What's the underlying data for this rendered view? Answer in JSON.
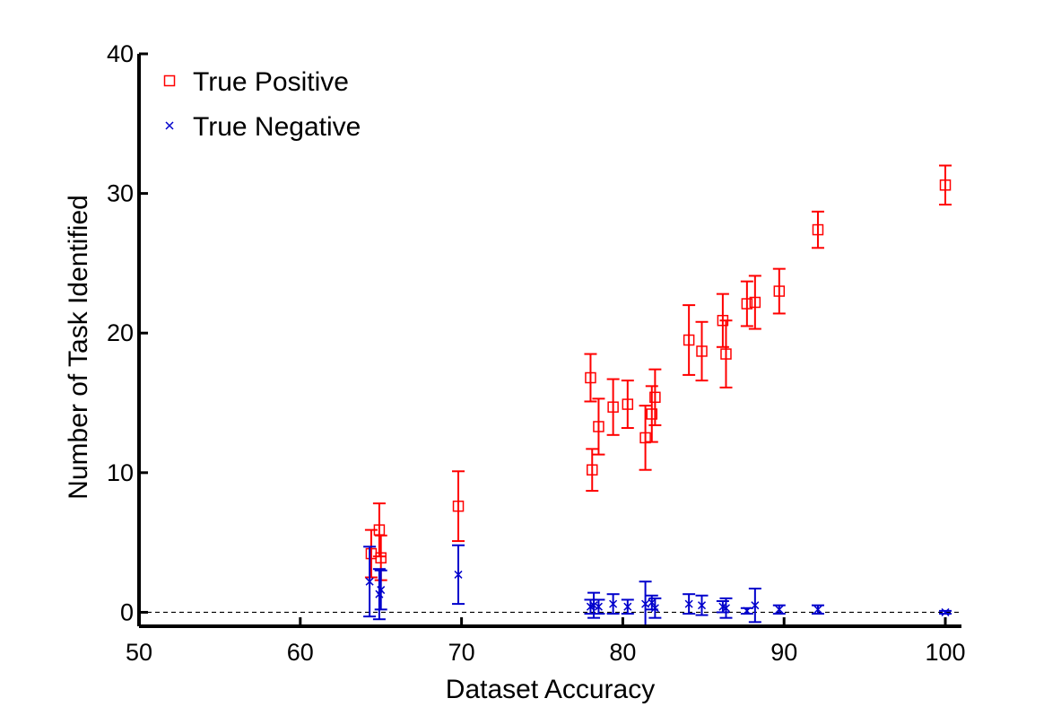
{
  "chart_data": {
    "type": "scatter",
    "xlabel": "Dataset Accuracy",
    "ylabel": "Number of Task Identified",
    "xlim": [
      50,
      101
    ],
    "ylim": [
      -1,
      40
    ],
    "xticks": [
      50,
      60,
      70,
      80,
      90,
      100
    ],
    "yticks": [
      0,
      10,
      20,
      30,
      40
    ],
    "reference_line": {
      "y": 0,
      "style": "dashed"
    },
    "legend_position": "top-left",
    "series": [
      {
        "name": "True Positive",
        "marker": "square",
        "color": "#ff0000",
        "points": [
          {
            "x": 64.4,
            "y": 4.2,
            "err": 1.7
          },
          {
            "x": 64.9,
            "y": 5.9,
            "err": 1.9
          },
          {
            "x": 65.0,
            "y": 3.9,
            "err": 1.6
          },
          {
            "x": 69.8,
            "y": 7.6,
            "err": 2.5
          },
          {
            "x": 78.0,
            "y": 16.8,
            "err": 1.7
          },
          {
            "x": 78.1,
            "y": 10.2,
            "err": 1.5
          },
          {
            "x": 78.5,
            "y": 13.3,
            "err": 2.0
          },
          {
            "x": 79.4,
            "y": 14.7,
            "err": 2.0
          },
          {
            "x": 80.3,
            "y": 14.9,
            "err": 1.7
          },
          {
            "x": 81.4,
            "y": 12.5,
            "err": 2.3
          },
          {
            "x": 81.8,
            "y": 14.2,
            "err": 2.0
          },
          {
            "x": 82.0,
            "y": 15.4,
            "err": 2.0
          },
          {
            "x": 84.1,
            "y": 19.5,
            "err": 2.5
          },
          {
            "x": 84.9,
            "y": 18.7,
            "err": 2.1
          },
          {
            "x": 86.2,
            "y": 20.9,
            "err": 1.9
          },
          {
            "x": 86.4,
            "y": 18.5,
            "err": 2.4
          },
          {
            "x": 87.7,
            "y": 22.1,
            "err": 1.6
          },
          {
            "x": 88.2,
            "y": 22.2,
            "err": 1.9
          },
          {
            "x": 89.7,
            "y": 23.0,
            "err": 1.6
          },
          {
            "x": 92.1,
            "y": 27.4,
            "err": 1.3
          },
          {
            "x": 100.0,
            "y": 30.6,
            "err": 1.4
          }
        ]
      },
      {
        "name": "True Negative",
        "marker": "x",
        "color": "#0000cc",
        "points": [
          {
            "x": 64.3,
            "y": 2.2,
            "err": 2.5
          },
          {
            "x": 64.9,
            "y": 1.3,
            "err": 1.8
          },
          {
            "x": 65.0,
            "y": 1.6,
            "err": 1.4
          },
          {
            "x": 69.8,
            "y": 2.7,
            "err": 2.1
          },
          {
            "x": 78.0,
            "y": 0.4,
            "err": 0.5
          },
          {
            "x": 78.2,
            "y": 0.5,
            "err": 0.9
          },
          {
            "x": 78.5,
            "y": 0.4,
            "err": 0.5
          },
          {
            "x": 79.4,
            "y": 0.6,
            "err": 0.7
          },
          {
            "x": 80.3,
            "y": 0.4,
            "err": 0.5
          },
          {
            "x": 81.4,
            "y": 0.6,
            "err": 1.6
          },
          {
            "x": 81.8,
            "y": 0.7,
            "err": 0.5
          },
          {
            "x": 82.0,
            "y": 0.3,
            "err": 0.7
          },
          {
            "x": 84.1,
            "y": 0.6,
            "err": 0.7
          },
          {
            "x": 84.9,
            "y": 0.5,
            "err": 0.7
          },
          {
            "x": 86.2,
            "y": 0.4,
            "err": 0.4
          },
          {
            "x": 86.4,
            "y": 0.3,
            "err": 0.7
          },
          {
            "x": 87.7,
            "y": 0.1,
            "err": 0.2
          },
          {
            "x": 88.2,
            "y": 0.5,
            "err": 1.2
          },
          {
            "x": 89.7,
            "y": 0.2,
            "err": 0.3
          },
          {
            "x": 92.1,
            "y": 0.2,
            "err": 0.3
          },
          {
            "x": 100.0,
            "y": 0.0,
            "err": 0.1
          }
        ]
      }
    ]
  }
}
